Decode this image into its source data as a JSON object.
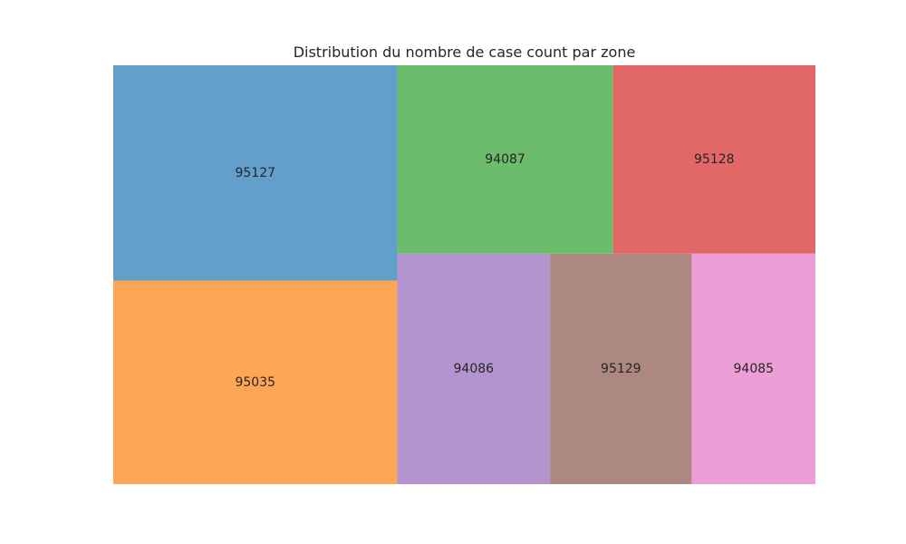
{
  "chart_data": {
    "type": "treemap",
    "title": "Distribution du nombre de case count par zone",
    "tiles": [
      {
        "label": "95127",
        "color": "#62a0cb",
        "value": 73000
      },
      {
        "label": "95035",
        "color": "#ffa556",
        "value": 69000
      },
      {
        "label": "94087",
        "color": "#6bbc6b",
        "value": 48500
      },
      {
        "label": "95128",
        "color": "#e26868",
        "value": 45500
      },
      {
        "label": "94086",
        "color": "#b394cf",
        "value": 42000
      },
      {
        "label": "95129",
        "color": "#ad8880",
        "value": 39000
      },
      {
        "label": "94085",
        "color": "#ed9ed6",
        "value": 34000
      }
    ]
  }
}
